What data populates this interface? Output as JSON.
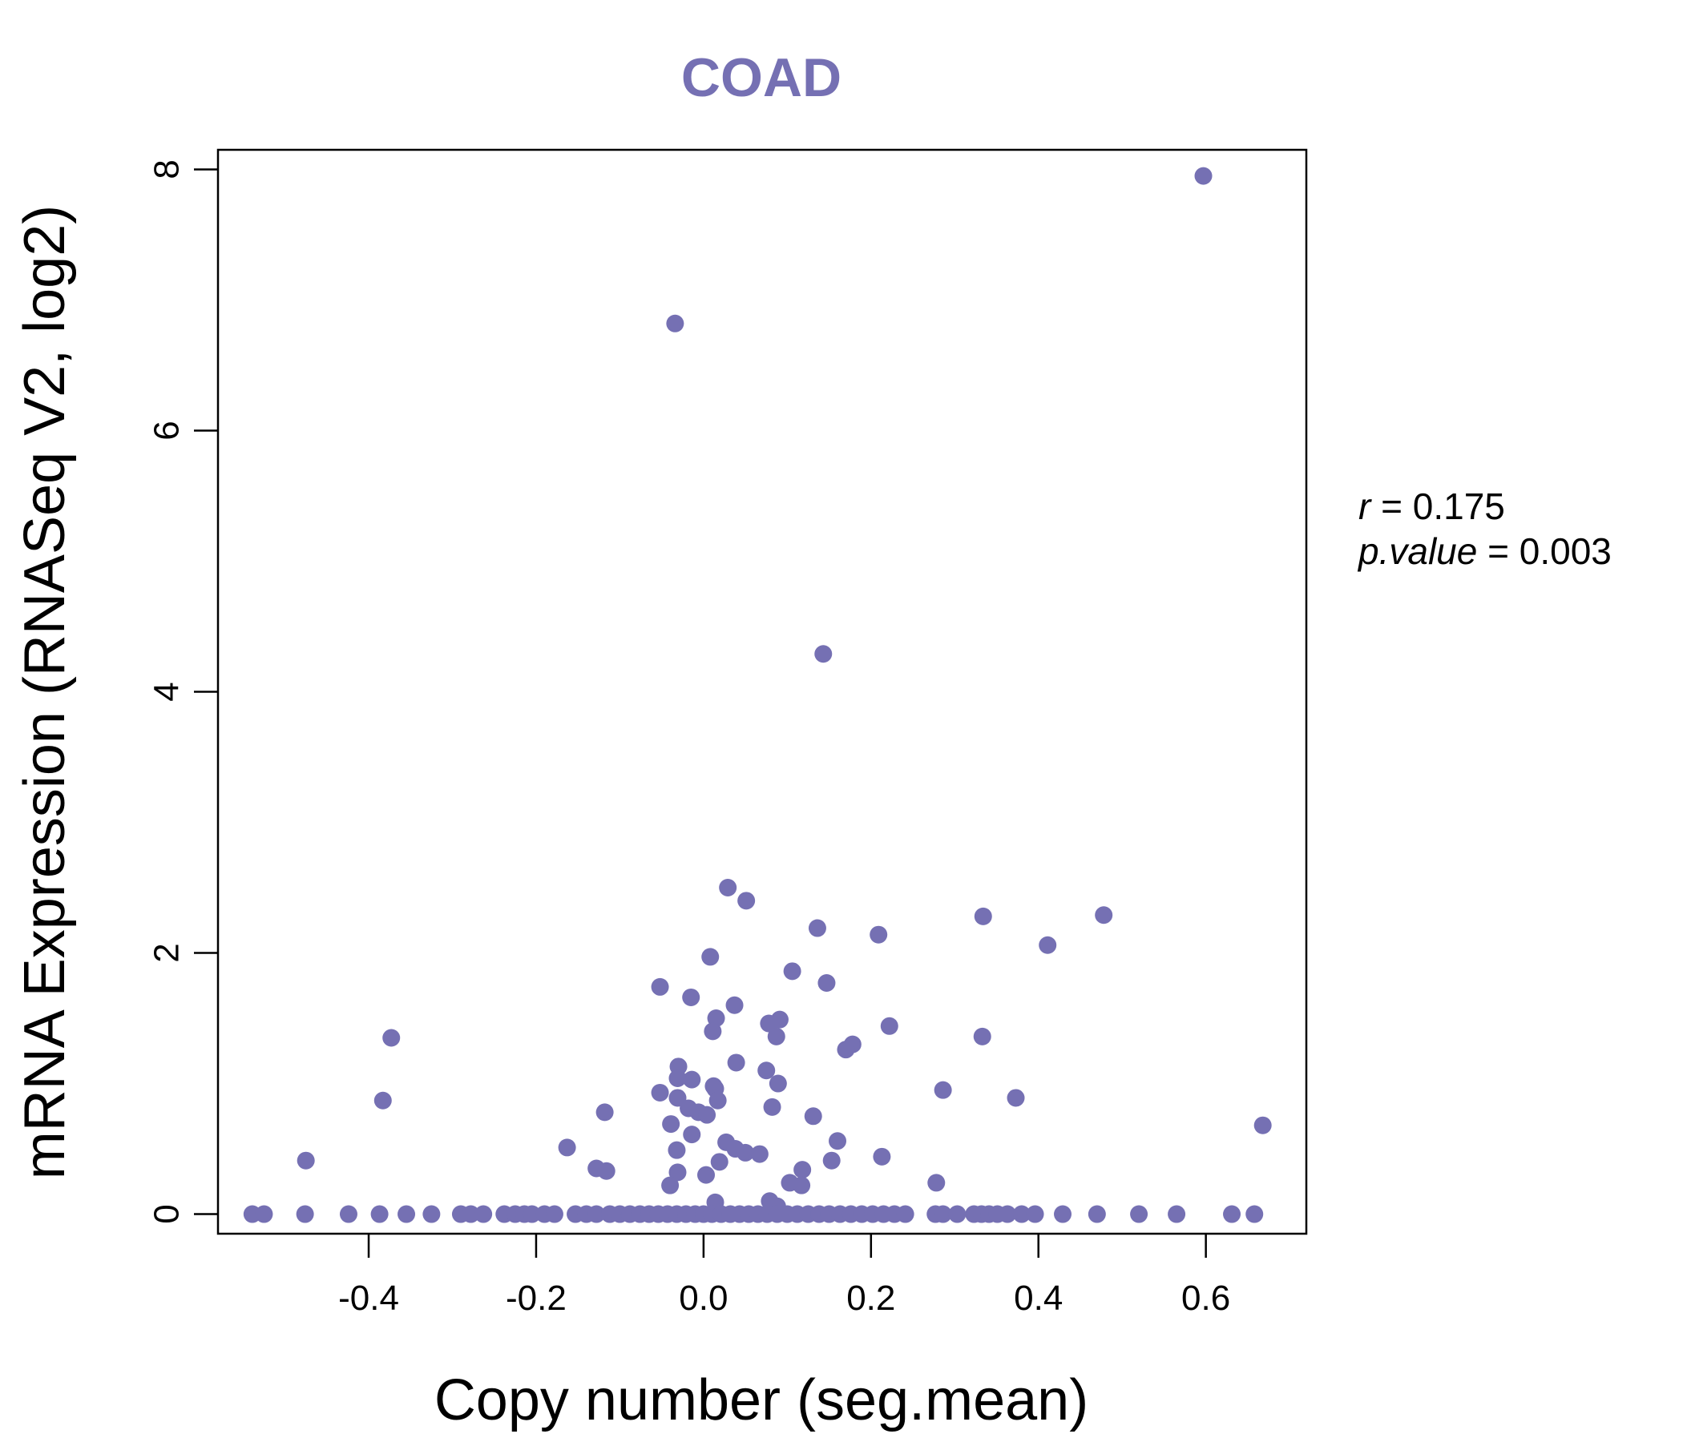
{
  "chart_data": {
    "type": "scatter",
    "title": "COAD",
    "xlabel": "Copy number (seg.mean)",
    "ylabel": "mRNA Expression (RNASeq V2, log2)",
    "xlim": [
      -0.58,
      0.72
    ],
    "ylim": [
      -0.15,
      8.15
    ],
    "xticks": [
      -0.4,
      -0.2,
      0.0,
      0.2,
      0.4,
      0.6
    ],
    "xtick_labels": [
      "-0.4",
      "-0.2",
      "0.0",
      "0.2",
      "0.4",
      "0.6"
    ],
    "yticks": [
      0,
      2,
      4,
      6,
      8
    ],
    "ytick_labels": [
      "0",
      "2",
      "4",
      "6",
      "8"
    ],
    "color": "#7570b3",
    "annotation": {
      "r_label": "r",
      "r_value": "0.175",
      "p_label": "p.value",
      "p_value": "0.003",
      "equals": "="
    },
    "points": [
      [
        0.597,
        7.95
      ],
      [
        -0.034,
        6.82
      ],
      [
        0.143,
        4.29
      ],
      [
        0.029,
        2.5
      ],
      [
        0.051,
        2.4
      ],
      [
        0.334,
        2.28
      ],
      [
        0.478,
        2.29
      ],
      [
        0.136,
        2.19
      ],
      [
        0.209,
        2.14
      ],
      [
        0.411,
        2.06
      ],
      [
        0.008,
        1.97
      ],
      [
        0.106,
        1.86
      ],
      [
        0.147,
        1.77
      ],
      [
        -0.052,
        1.74
      ],
      [
        -0.015,
        1.66
      ],
      [
        0.037,
        1.6
      ],
      [
        0.015,
        1.5
      ],
      [
        0.091,
        1.49
      ],
      [
        0.078,
        1.46
      ],
      [
        0.222,
        1.44
      ],
      [
        0.011,
        1.4
      ],
      [
        0.087,
        1.36
      ],
      [
        -0.373,
        1.35
      ],
      [
        0.333,
        1.36
      ],
      [
        0.178,
        1.3
      ],
      [
        0.17,
        1.26
      ],
      [
        0.039,
        1.16
      ],
      [
        -0.03,
        1.13
      ],
      [
        0.075,
        1.1
      ],
      [
        -0.031,
        1.04
      ],
      [
        -0.014,
        1.03
      ],
      [
        0.089,
        1.0
      ],
      [
        0.012,
        0.98
      ],
      [
        0.014,
        0.96
      ],
      [
        0.286,
        0.95
      ],
      [
        -0.052,
        0.93
      ],
      [
        -0.031,
        0.89
      ],
      [
        0.373,
        0.89
      ],
      [
        -0.383,
        0.87
      ],
      [
        0.017,
        0.87
      ],
      [
        0.082,
        0.82
      ],
      [
        -0.018,
        0.81
      ],
      [
        -0.006,
        0.78
      ],
      [
        0.004,
        0.76
      ],
      [
        -0.118,
        0.78
      ],
      [
        0.131,
        0.75
      ],
      [
        -0.039,
        0.69
      ],
      [
        0.668,
        0.68
      ],
      [
        -0.014,
        0.61
      ],
      [
        0.16,
        0.56
      ],
      [
        0.027,
        0.55
      ],
      [
        0.038,
        0.5
      ],
      [
        -0.163,
        0.51
      ],
      [
        -0.032,
        0.49
      ],
      [
        0.05,
        0.47
      ],
      [
        0.067,
        0.46
      ],
      [
        0.213,
        0.44
      ],
      [
        -0.475,
        0.41
      ],
      [
        0.019,
        0.4
      ],
      [
        0.153,
        0.41
      ],
      [
        -0.128,
        0.35
      ],
      [
        0.118,
        0.34
      ],
      [
        -0.116,
        0.33
      ],
      [
        -0.031,
        0.32
      ],
      [
        0.003,
        0.3
      ],
      [
        0.278,
        0.24
      ],
      [
        0.103,
        0.24
      ],
      [
        0.117,
        0.22
      ],
      [
        -0.04,
        0.22
      ],
      [
        0.079,
        0.1
      ],
      [
        0.014,
        0.09
      ],
      [
        0.088,
        0.06
      ],
      [
        -0.539,
        0.0
      ],
      [
        -0.525,
        0.0
      ],
      [
        -0.476,
        0.0
      ],
      [
        -0.424,
        0.0
      ],
      [
        -0.387,
        0.0
      ],
      [
        -0.355,
        0.0
      ],
      [
        -0.325,
        0.0
      ],
      [
        -0.29,
        0.0
      ],
      [
        -0.278,
        0.0
      ],
      [
        -0.263,
        0.0
      ],
      [
        -0.238,
        0.0
      ],
      [
        -0.225,
        0.0
      ],
      [
        -0.214,
        0.0
      ],
      [
        -0.205,
        0.0
      ],
      [
        -0.19,
        0.0
      ],
      [
        -0.178,
        0.0
      ],
      [
        -0.153,
        0.0
      ],
      [
        -0.14,
        0.0
      ],
      [
        -0.128,
        0.0
      ],
      [
        -0.112,
        0.0
      ],
      [
        -0.1,
        0.0
      ],
      [
        -0.088,
        0.0
      ],
      [
        -0.076,
        0.0
      ],
      [
        -0.065,
        0.0
      ],
      [
        -0.054,
        0.0
      ],
      [
        -0.043,
        0.0
      ],
      [
        -0.032,
        0.0
      ],
      [
        -0.021,
        0.0
      ],
      [
        -0.01,
        0.0
      ],
      [
        0.0,
        0.0
      ],
      [
        0.01,
        0.0
      ],
      [
        0.021,
        0.0
      ],
      [
        0.032,
        0.0
      ],
      [
        0.043,
        0.0
      ],
      [
        0.054,
        0.0
      ],
      [
        0.065,
        0.0
      ],
      [
        0.076,
        0.0
      ],
      [
        0.088,
        0.0
      ],
      [
        0.1,
        0.0
      ],
      [
        0.112,
        0.0
      ],
      [
        0.125,
        0.0
      ],
      [
        0.138,
        0.0
      ],
      [
        0.15,
        0.0
      ],
      [
        0.163,
        0.0
      ],
      [
        0.176,
        0.0
      ],
      [
        0.189,
        0.0
      ],
      [
        0.202,
        0.0
      ],
      [
        0.215,
        0.0
      ],
      [
        0.228,
        0.0
      ],
      [
        0.241,
        0.0
      ],
      [
        0.277,
        0.0
      ],
      [
        0.286,
        0.0
      ],
      [
        0.303,
        0.0
      ],
      [
        0.323,
        0.0
      ],
      [
        0.332,
        0.0
      ],
      [
        0.341,
        0.0
      ],
      [
        0.351,
        0.0
      ],
      [
        0.363,
        0.0
      ],
      [
        0.38,
        0.0
      ],
      [
        0.396,
        0.0
      ],
      [
        0.429,
        0.0
      ],
      [
        0.47,
        0.0
      ],
      [
        0.52,
        0.0
      ],
      [
        0.565,
        0.0
      ],
      [
        0.631,
        0.0
      ],
      [
        0.658,
        0.0
      ]
    ]
  }
}
